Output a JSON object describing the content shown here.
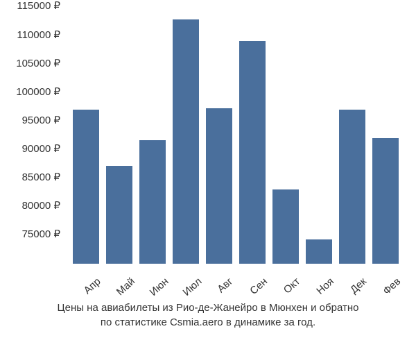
{
  "chart": {
    "type": "bar",
    "bar_color": "#4a6f9c",
    "background_color": "#ffffff",
    "text_color": "#333333",
    "font_family": "Arial, sans-serif",
    "tick_fontsize": 15,
    "caption_fontsize": 15,
    "y_min": 72000,
    "y_max": 117000,
    "y_ticks": [
      75000,
      80000,
      85000,
      90000,
      95000,
      100000,
      105000,
      110000,
      115000
    ],
    "y_tick_labels": [
      "75000 ₽",
      "80000 ₽",
      "85000 ₽",
      "90000 ₽",
      "95000 ₽",
      "100000 ₽",
      "105000 ₽",
      "110000 ₽",
      "115000 ₽"
    ],
    "categories": [
      "Апр",
      "Май",
      "Июн",
      "Июл",
      "Авг",
      "Сен",
      "Окт",
      "Ноя",
      "Дек",
      "Фев"
    ],
    "values": [
      99000,
      89200,
      93700,
      114800,
      99200,
      111000,
      85000,
      76200,
      99000,
      94000
    ],
    "x_label_rotation": -42,
    "bar_gap": 10,
    "caption_line1": "Цены на авиабилеты из Рио-де-Жанейро в Мюнхен и обратно",
    "caption_line2": "по статистике Csmia.aero в динамике за год."
  }
}
